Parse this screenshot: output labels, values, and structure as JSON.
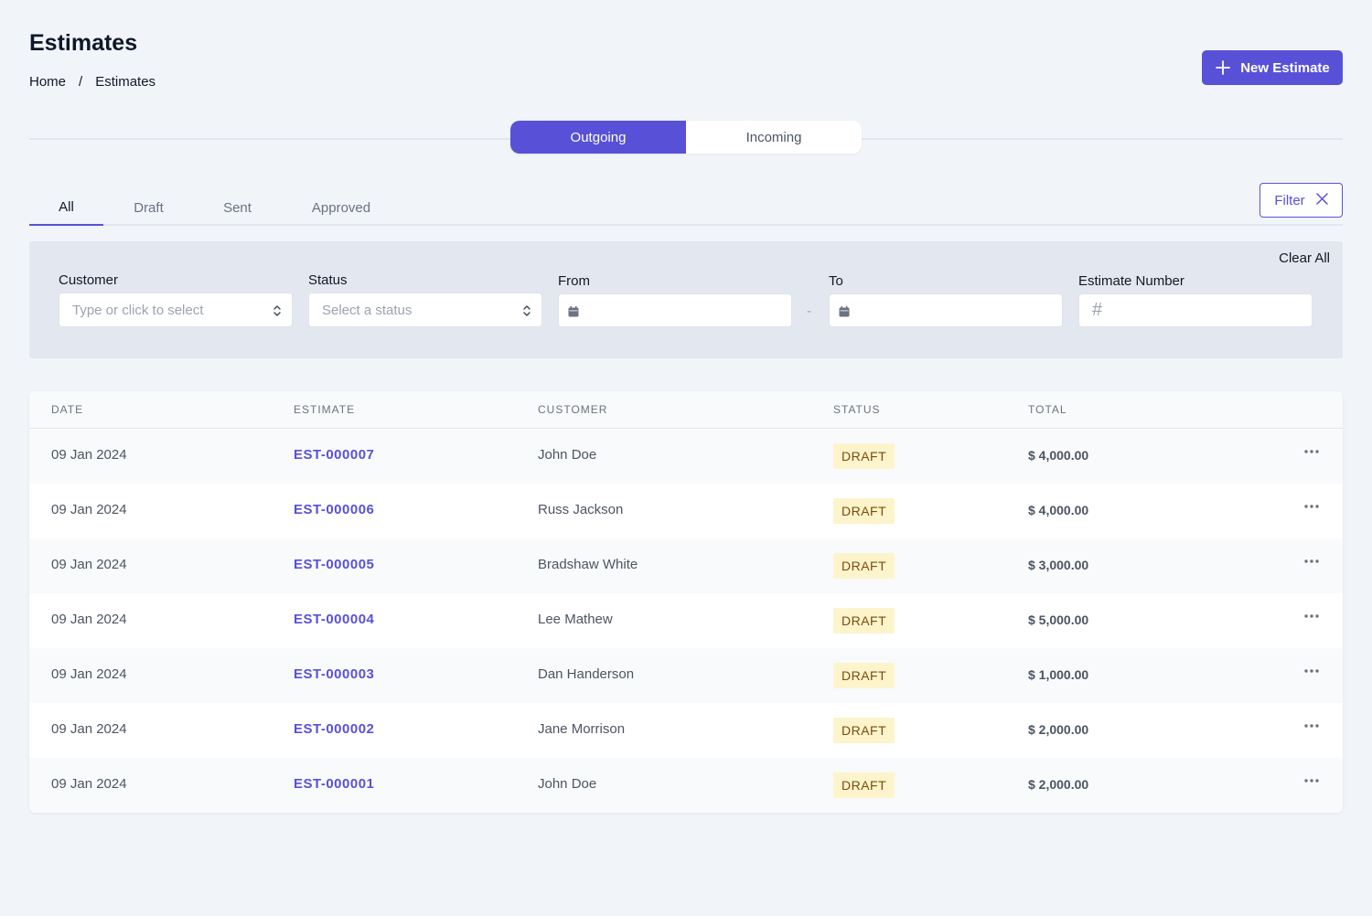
{
  "header": {
    "title": "Estimates",
    "breadcrumb": {
      "home": "Home",
      "separator": "/",
      "current": "Estimates"
    },
    "new_button_label": "New Estimate"
  },
  "segment": {
    "outgoing": "Outgoing",
    "incoming": "Incoming",
    "selected": "Outgoing"
  },
  "tabs": {
    "all": "All",
    "draft": "Draft",
    "sent": "Sent",
    "approved": "Approved",
    "selected": "All"
  },
  "filter_button_label": "Filter",
  "filters": {
    "clear_all": "Clear All",
    "customer": {
      "label": "Customer",
      "placeholder": "Type or click to select"
    },
    "status": {
      "label": "Status",
      "placeholder": "Select a status"
    },
    "from": {
      "label": "From"
    },
    "range_separator": "-",
    "to": {
      "label": "To"
    },
    "estimate_number": {
      "label": "Estimate Number",
      "prefix": "#"
    }
  },
  "table": {
    "columns": {
      "date": "DATE",
      "estimate": "ESTIMATE",
      "customer": "CUSTOMER",
      "status": "STATUS",
      "total": "TOTAL"
    },
    "rows": [
      {
        "date": "09 Jan 2024",
        "estimate": "EST-000007",
        "customer": "John Doe",
        "status": "DRAFT",
        "total": "$ 4,000.00"
      },
      {
        "date": "09 Jan 2024",
        "estimate": "EST-000006",
        "customer": "Russ Jackson",
        "status": "DRAFT",
        "total": "$ 4,000.00"
      },
      {
        "date": "09 Jan 2024",
        "estimate": "EST-000005",
        "customer": "Bradshaw White",
        "status": "DRAFT",
        "total": "$ 3,000.00"
      },
      {
        "date": "09 Jan 2024",
        "estimate": "EST-000004",
        "customer": "Lee Mathew",
        "status": "DRAFT",
        "total": "$ 5,000.00"
      },
      {
        "date": "09 Jan 2024",
        "estimate": "EST-000003",
        "customer": "Dan Handerson",
        "status": "DRAFT",
        "total": "$ 1,000.00"
      },
      {
        "date": "09 Jan 2024",
        "estimate": "EST-000002",
        "customer": "Jane Morrison",
        "status": "DRAFT",
        "total": "$ 2,000.00"
      },
      {
        "date": "09 Jan 2024",
        "estimate": "EST-000001",
        "customer": "John Doe",
        "status": "DRAFT",
        "total": "$ 2,000.00"
      }
    ]
  },
  "colors": {
    "accent": "#5851d8",
    "page_bg": "#f1f4f9",
    "filter_bg": "#e3e8f0",
    "draft_bg": "#fdf4cc",
    "draft_text": "#7a4d0c"
  }
}
